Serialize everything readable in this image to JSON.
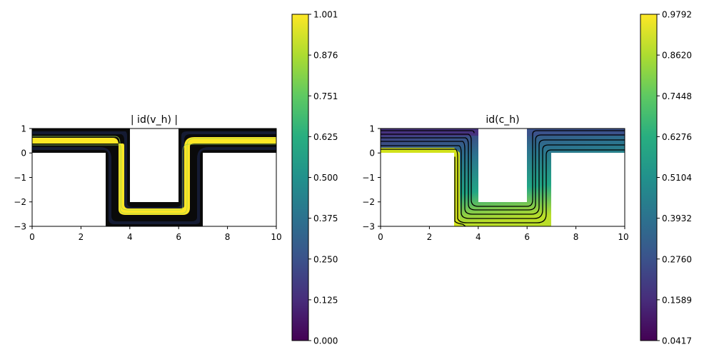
{
  "chart_data": [
    {
      "type": "contour",
      "title": "| id(v_h) |",
      "xlim": [
        0,
        10
      ],
      "ylim": [
        -3,
        1
      ],
      "x_ticks": [
        "0",
        "2",
        "4",
        "6",
        "8",
        "10"
      ],
      "y_ticks": [
        "1",
        "0",
        "−1",
        "−2",
        "−3"
      ],
      "colorbar": {
        "min": 0.0,
        "max": 1.001,
        "ticks": [
          "0.000",
          "0.125",
          "0.250",
          "0.375",
          "0.500",
          "0.625",
          "0.751",
          "0.876",
          "1.001"
        ]
      },
      "domain": "U-shaped channel: x 0-10, y 0-1 top band, x 3-7 downward leg to y=-3, obstacle x 4-6, y -2 to 1",
      "field_description": "velocity magnitude, peak 1.001 along channel centreline, 0 at walls"
    },
    {
      "type": "contour",
      "title": "id(c_h)",
      "xlim": [
        0,
        10
      ],
      "ylim": [
        -3,
        1
      ],
      "x_ticks": [
        "0",
        "2",
        "4",
        "6",
        "8",
        "10"
      ],
      "y_ticks": [
        "1",
        "0",
        "−1",
        "−2",
        "−3"
      ],
      "colorbar": {
        "min": 0.0417,
        "max": 0.9792,
        "ticks": [
          "0.0417",
          "0.1589",
          "0.2760",
          "0.3932",
          "0.5104",
          "0.6276",
          "0.7448",
          "0.8620",
          "0.9792"
        ]
      },
      "domain": "U-shaped channel: x 0-10, y 0-1 top band, x 3-7 downward leg to y=-3, obstacle x 4-6, y -2 to 1",
      "field_description": "concentration, high (0.9792) at lower-left inflow wall, low (0.0417) at upper wall"
    }
  ]
}
